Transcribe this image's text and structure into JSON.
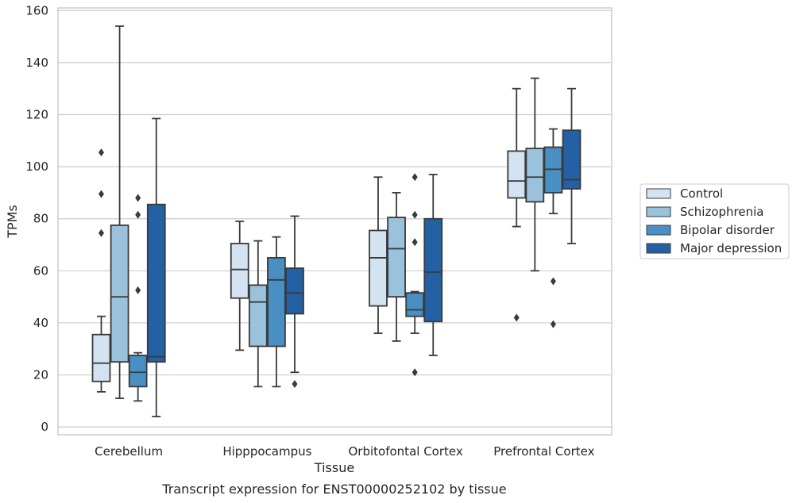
{
  "caption": "Transcript expression for ENST00000252102 by tissue",
  "chart_data": {
    "type": "box",
    "xlabel": "Tissue",
    "ylabel": "TPMs",
    "ylim": [
      -3,
      161
    ],
    "yticks": [
      0,
      20,
      40,
      60,
      80,
      100,
      120,
      140,
      160
    ],
    "grid": true,
    "legend_position": "right",
    "categories": [
      "Cerebellum",
      "Hipppocampus",
      "Orbitofontal Cortex",
      "Prefrontal Cortex"
    ],
    "series": [
      {
        "name": "Control",
        "color": "#d3e3f2",
        "boxes": [
          {
            "whisker_low": 13.5,
            "q1": 17.5,
            "median": 24.5,
            "q3": 35.5,
            "whisker_high": 42.5,
            "outliers": [
              105.5,
              89.5,
              74.5
            ]
          },
          {
            "whisker_low": 29.5,
            "q1": 49.5,
            "median": 60.5,
            "q3": 70.5,
            "whisker_high": 79,
            "outliers": []
          },
          {
            "whisker_low": 36,
            "q1": 46.5,
            "median": 65,
            "q3": 75.5,
            "whisker_high": 96,
            "outliers": []
          },
          {
            "whisker_low": 77,
            "q1": 88,
            "median": 94.5,
            "q3": 106,
            "whisker_high": 130,
            "outliers": [
              42
            ]
          }
        ]
      },
      {
        "name": "Schizophrenia",
        "color": "#9ac2dc",
        "boxes": [
          {
            "whisker_low": 11,
            "q1": 25,
            "median": 50,
            "q3": 77.5,
            "whisker_high": 154,
            "outliers": []
          },
          {
            "whisker_low": 15.5,
            "q1": 31,
            "median": 48,
            "q3": 54.5,
            "whisker_high": 71.5,
            "outliers": []
          },
          {
            "whisker_low": 33,
            "q1": 50,
            "median": 68.5,
            "q3": 80.5,
            "whisker_high": 90,
            "outliers": []
          },
          {
            "whisker_low": 60,
            "q1": 86.5,
            "median": 96,
            "q3": 107,
            "whisker_high": 134,
            "outliers": []
          }
        ]
      },
      {
        "name": "Bipolar disorder",
        "color": "#4a8fc3",
        "boxes": [
          {
            "whisker_low": 10,
            "q1": 15.5,
            "median": 21,
            "q3": 27.5,
            "whisker_high": 28.5,
            "outliers": [
              88,
              81.5,
              52.5
            ]
          },
          {
            "whisker_low": 15.5,
            "q1": 31,
            "median": 56.5,
            "q3": 65,
            "whisker_high": 73,
            "outliers": []
          },
          {
            "whisker_low": 36,
            "q1": 42.5,
            "median": 45,
            "q3": 51.5,
            "whisker_high": 52,
            "outliers": [
              96,
              81.5,
              71,
              21
            ]
          },
          {
            "whisker_low": 82,
            "q1": 90,
            "median": 99,
            "q3": 107.5,
            "whisker_high": 114.5,
            "outliers": [
              56,
              39.5
            ]
          }
        ]
      },
      {
        "name": "Major depression",
        "color": "#2461a4",
        "boxes": [
          {
            "whisker_low": 4,
            "q1": 25,
            "median": 27,
            "q3": 85.5,
            "whisker_high": 118.5,
            "outliers": []
          },
          {
            "whisker_low": 21,
            "q1": 43.5,
            "median": 51.5,
            "q3": 61,
            "whisker_high": 81,
            "outliers": [
              16.5
            ]
          },
          {
            "whisker_low": 27.5,
            "q1": 40.5,
            "median": 59.5,
            "q3": 80,
            "whisker_high": 97,
            "outliers": []
          },
          {
            "whisker_low": 70.5,
            "q1": 91.5,
            "median": 95,
            "q3": 114,
            "whisker_high": 130,
            "outliers": []
          }
        ]
      }
    ]
  }
}
